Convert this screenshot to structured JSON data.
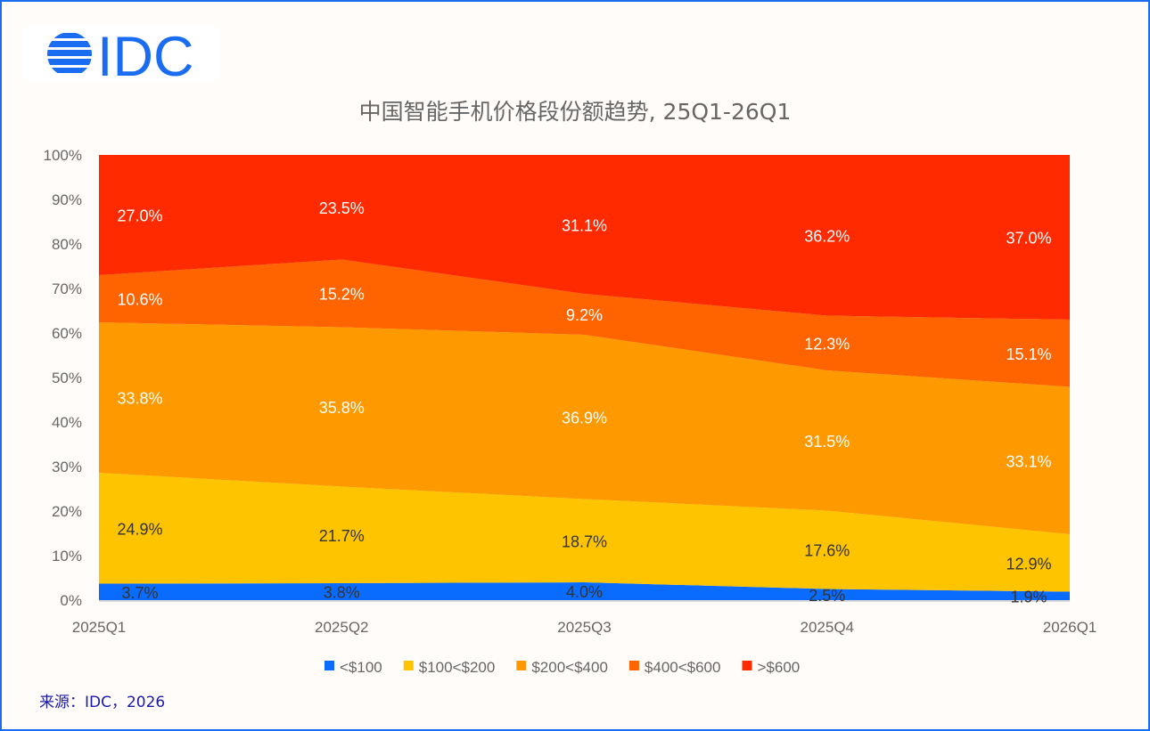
{
  "source": "来源：IDC，2026",
  "logo_text": "IDC",
  "chart_data": {
    "type": "area",
    "stacked": true,
    "title": "中国智能手机价格段份额趋势, 25Q1-26Q1",
    "categories": [
      "2025Q1",
      "2025Q2",
      "2025Q3",
      "2025Q4",
      "2026Q1"
    ],
    "y_ticks": [
      "0%",
      "10%",
      "20%",
      "30%",
      "40%",
      "50%",
      "60%",
      "70%",
      "80%",
      "90%",
      "100%"
    ],
    "ylim": [
      0,
      100
    ],
    "legend_position": "bottom",
    "series": [
      {
        "name": "<$100",
        "color": "#0a6cff",
        "label_color": "#333333",
        "values": [
          3.7,
          3.8,
          4.0,
          2.5,
          1.9
        ],
        "labels": [
          "3.7%",
          "3.8%",
          "4.0%",
          "2.5%",
          "1.9%"
        ]
      },
      {
        "name": "$100<$200",
        "color": "#ffc400",
        "label_color": "#333333",
        "values": [
          24.9,
          21.7,
          18.7,
          17.6,
          12.9
        ],
        "labels": [
          "24.9%",
          "21.7%",
          "18.7%",
          "17.6%",
          "12.9%"
        ]
      },
      {
        "name": "$200<$400",
        "color": "#ff9900",
        "label_color": "#ffffff",
        "values": [
          33.8,
          35.8,
          36.9,
          31.5,
          33.1
        ],
        "labels": [
          "33.8%",
          "35.8%",
          "36.9%",
          "31.5%",
          "33.1%"
        ]
      },
      {
        "name": "$400<$600",
        "color": "#ff6400",
        "label_color": "#ffffff",
        "values": [
          10.6,
          15.2,
          9.2,
          12.3,
          15.1
        ],
        "labels": [
          "10.6%",
          "15.2%",
          "9.2%",
          "12.3%",
          "15.1%"
        ]
      },
      {
        "name": ">$600",
        "color": "#ff2a00",
        "label_color": "#ffffff",
        "values": [
          27.0,
          23.5,
          31.1,
          36.2,
          37.0
        ],
        "labels": [
          "27.0%",
          "23.5%",
          "31.1%",
          "36.2%",
          "37.0%"
        ]
      }
    ]
  }
}
